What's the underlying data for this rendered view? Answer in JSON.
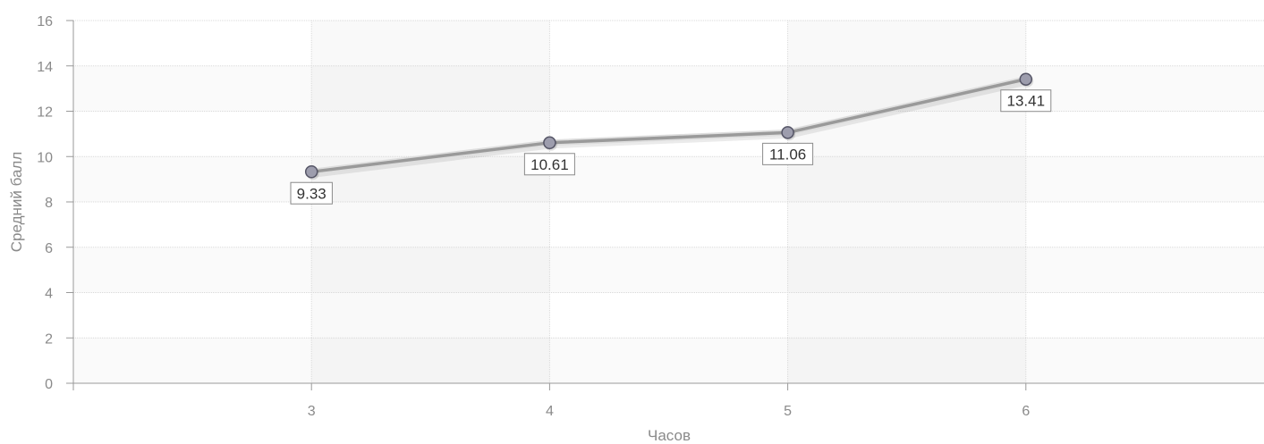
{
  "chart_data": {
    "type": "line",
    "title": "",
    "xlabel": "Часов",
    "ylabel": "Средний балл",
    "x": [
      3,
      4,
      5,
      6
    ],
    "x_ticks": [
      "3",
      "4",
      "5",
      "6"
    ],
    "xlim": [
      2,
      7
    ],
    "ylim": [
      0,
      16
    ],
    "y_ticks": [
      "0",
      "2",
      "4",
      "6",
      "8",
      "10",
      "12",
      "14",
      "16"
    ],
    "series": [
      {
        "values": [
          9.33,
          10.61,
          11.06,
          13.41
        ],
        "labels": [
          "9.33",
          "10.61",
          "11.06",
          "13.41"
        ]
      }
    ],
    "grid": true,
    "colors": {
      "line": "#9a9a9a",
      "marker_fill": "#9d9dad",
      "marker_stroke": "#555566",
      "grid": "#d8d8d8",
      "band": "#f6f6f6",
      "axis": "#999999"
    }
  }
}
